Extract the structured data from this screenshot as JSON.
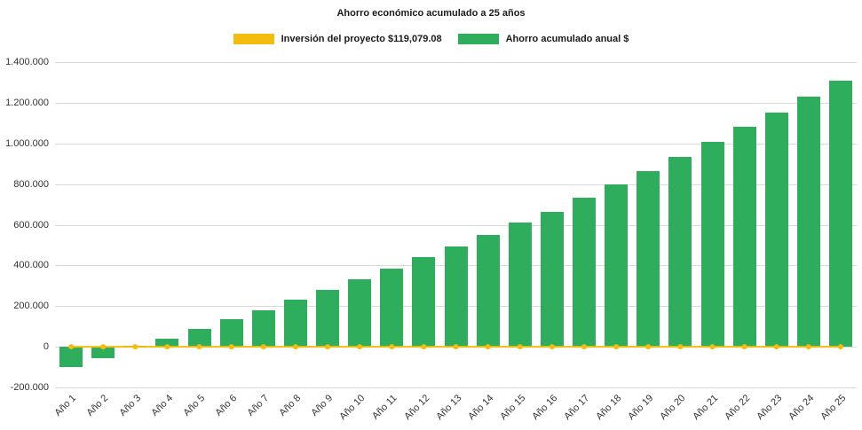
{
  "title": "Ahorro económico acumulado a 25 años",
  "colors": {
    "bar_green": "#2eae5c",
    "line_yellow": "#f2bd0e",
    "grid": "#d9d9d9",
    "text": "#333333"
  },
  "legend": [
    {
      "label": "Inversión del proyecto $119,079.08",
      "color": "#f2bd0e"
    },
    {
      "label": "Ahorro acumulado anual $",
      "color": "#2eae5c"
    }
  ],
  "chart_data": {
    "type": "bar",
    "title": "Ahorro económico acumulado a 25 años",
    "categories": [
      "Año 1",
      "Año 2",
      "Año 3",
      "Año 4",
      "Año 5",
      "Año 6",
      "Año 7",
      "Año 8",
      "Año 9",
      "Año 10",
      "Año 11",
      "Año 12",
      "Año 13",
      "Año 14",
      "Año 15",
      "Año 16",
      "Año 17",
      "Año 18",
      "Año 19",
      "Año 20",
      "Año 21",
      "Año 22",
      "Año 23",
      "Año 24",
      "Año 25"
    ],
    "series": [
      {
        "name": "Ahorro acumulado anual $",
        "type": "bar",
        "color": "#2eae5c",
        "values": [
          -100000,
          -55000,
          5000,
          40000,
          90000,
          135000,
          180000,
          230000,
          280000,
          330000,
          385000,
          440000,
          495000,
          550000,
          610000,
          665000,
          735000,
          800000,
          865000,
          935000,
          1010000,
          1080000,
          1150000,
          1230000,
          1310000
        ]
      },
      {
        "name": "Inversión del proyecto $119,079.08",
        "type": "line",
        "color": "#f2bd0e",
        "values": [
          0,
          0,
          0,
          0,
          0,
          0,
          0,
          0,
          0,
          0,
          0,
          0,
          0,
          0,
          0,
          0,
          0,
          0,
          0,
          0,
          0,
          0,
          0,
          0,
          0
        ]
      }
    ],
    "ylim": [
      -200000,
      1400000
    ],
    "ytick_step": 200000,
    "ytick_labels": [
      "-200.000",
      "0",
      "200.000",
      "400.000",
      "600.000",
      "800.000",
      "1.000.000",
      "1.200.000",
      "1.400.000"
    ],
    "xlabel": "",
    "ylabel": "",
    "grid": true,
    "legend_position": "top"
  }
}
